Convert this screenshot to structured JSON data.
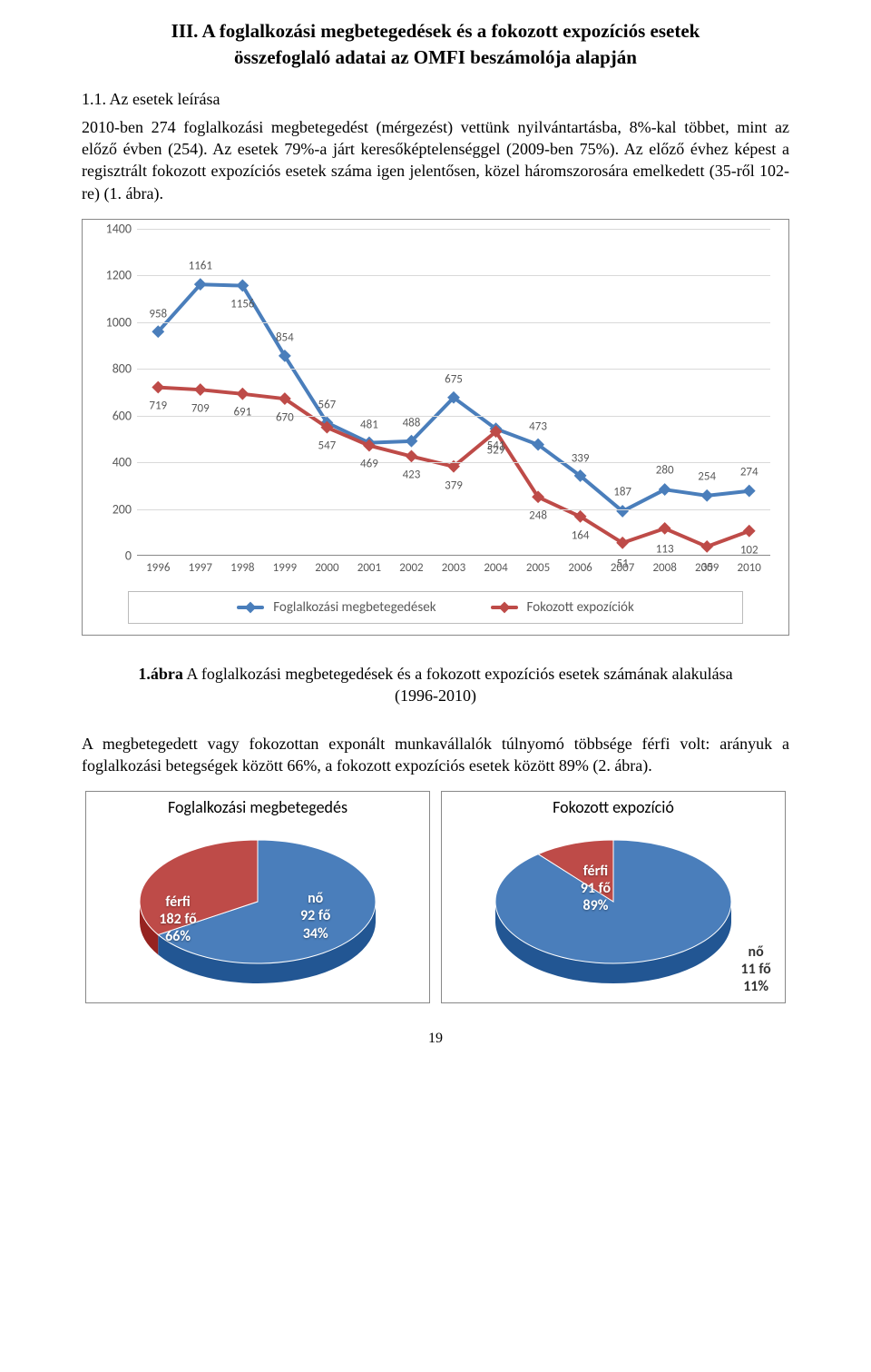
{
  "title_line1": "III. A foglalkozási megbetegedések és a fokozott expozíciós esetek",
  "title_line2": "összefoglaló adatai az OMFI beszámolója alapján",
  "subheading": "1.1. Az esetek leírása",
  "paragraph1": "2010-ben 274 foglalkozási megbetegedést (mérgezést) vettünk nyilvántartásba, 8%-kal többet, mint az előző évben (254). Az esetek 79%-a járt keresőképtelenséggel (2009-ben 75%). Az előző évhez képest a regisztrált fokozott expozíciós esetek száma igen jelentősen, közel háromszorosára emelkedett (35-ről 102-re) (1. ábra).",
  "chart": {
    "type": "line",
    "ylim": [
      0,
      1400
    ],
    "ytick_step": 200,
    "yticks": [
      0,
      200,
      400,
      600,
      800,
      1000,
      1200,
      1400
    ],
    "years": [
      "1996",
      "1997",
      "1998",
      "1999",
      "2000",
      "2001",
      "2002",
      "2003",
      "2004",
      "2005",
      "2006",
      "2007",
      "2008",
      "2009",
      "2010"
    ],
    "series": [
      {
        "name": "Foglalkozási megbetegedések",
        "color": "#4a7ebb",
        "values": [
          958,
          1161,
          1156,
          854,
          567,
          481,
          488,
          675,
          541,
          473,
          339,
          187,
          280,
          254,
          274
        ],
        "label_dy": [
          -20,
          -20,
          20,
          -20,
          -20,
          -20,
          -20,
          -20,
          18,
          -20,
          -20,
          -22,
          -22,
          -22,
          -22
        ]
      },
      {
        "name": "Fokozott expozíciók",
        "color": "#be4b48",
        "values": [
          719,
          709,
          691,
          670,
          547,
          469,
          423,
          379,
          529,
          248,
          164,
          51,
          113,
          35,
          102
        ],
        "label_dy": [
          20,
          20,
          20,
          20,
          20,
          20,
          20,
          20,
          20,
          20,
          20,
          22,
          22,
          22,
          20
        ]
      }
    ],
    "line_width": 4,
    "marker_size": 7,
    "grid_color": "#d9d9d9",
    "axis_color": "#888888",
    "text_color": "#595959",
    "background_color": "#ffffff"
  },
  "caption_lead": "1.ábra",
  "caption_rest": " A foglalkozási megbetegedések és a fokozott expozíciós esetek számának alakulása (1996-2010)",
  "paragraph2": "A megbetegedett vagy fokozottan exponált munkavállalók túlnyomó többsége férfi volt: arányuk a foglalkozási betegségek között 66%, a fokozott expozíciós esetek között 89% (2. ábra).",
  "pies": [
    {
      "title": "Foglalkozási megbetegedés",
      "slices": [
        {
          "label_lines": [
            "férfi",
            "182 fő",
            "66%"
          ],
          "value": 66,
          "color": "#4a7ebb",
          "pos": "inside-left"
        },
        {
          "label_lines": [
            "nő",
            "92 fő",
            "34%"
          ],
          "value": 34,
          "color": "#be4b48",
          "pos": "inside-right"
        }
      ]
    },
    {
      "title": "Fokozott expozíció",
      "slices": [
        {
          "label_lines": [
            "férfi",
            "91 fő",
            "89%"
          ],
          "value": 89,
          "color": "#4a7ebb",
          "pos": "inside-center"
        },
        {
          "label_lines": [
            "nő",
            "11 fő",
            "11%"
          ],
          "value": 11,
          "color": "#be4b48",
          "pos": "outside-br"
        }
      ]
    }
  ],
  "page_number": "19"
}
